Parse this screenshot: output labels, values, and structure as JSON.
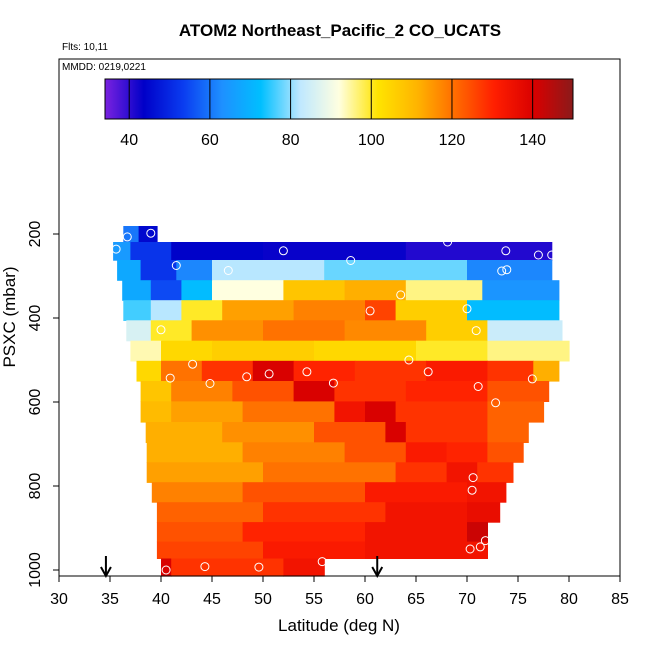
{
  "header": {
    "title": "ATOM2 Northeast_Pacific_2 CO_UCATS",
    "flts_label": "Flts: 10,11",
    "mmdd_label": "MMDD: 0219,0221"
  },
  "chart_data": {
    "type": "heatmap",
    "title": "ATOM2 Northeast_Pacific_2 CO_UCATS",
    "xlabel": "Latitude (deg N)",
    "ylabel": "PSXC (mbar)",
    "xlim": [
      30,
      85
    ],
    "ylim": [
      1000,
      0
    ],
    "y_reversed": true,
    "x_ticks": [
      30,
      35,
      40,
      45,
      50,
      55,
      60,
      65,
      70,
      75,
      80,
      85
    ],
    "y_ticks": [
      200,
      400,
      600,
      800,
      1000
    ],
    "colorbar": {
      "range": [
        34,
        150
      ],
      "ticks": [
        40,
        60,
        80,
        100,
        120,
        140
      ],
      "placement": "top-inside",
      "colors": [
        "#7a22e0",
        "#0000c8",
        "#0a3cf0",
        "#1e90ff",
        "#00bfff",
        "#bfe8ff",
        "#ffffe0",
        "#ffe400",
        "#ffb400",
        "#ff6a00",
        "#ff1e00",
        "#d80000",
        "#8b1a1a"
      ]
    },
    "grid": false,
    "bands": [
      {
        "p": 200,
        "segments": [
          {
            "x0": 36.3,
            "x1": 37.8,
            "v": 60
          },
          {
            "x0": 37.8,
            "x1": 39.6,
            "v": 45
          }
        ]
      },
      {
        "p": 238,
        "segments": [
          {
            "x0": 35.3,
            "x1": 37.0,
            "v": 65
          },
          {
            "x0": 37.0,
            "x1": 41.0,
            "v": 52
          },
          {
            "x0": 41.0,
            "x1": 50.0,
            "v": 44
          },
          {
            "x0": 50.0,
            "x1": 64.0,
            "v": 43
          },
          {
            "x0": 64.0,
            "x1": 78.3,
            "v": 41
          }
        ]
      },
      {
        "p": 286,
        "segments": [
          {
            "x0": 35.7,
            "x1": 38.0,
            "v": 68
          },
          {
            "x0": 38.0,
            "x1": 41.5,
            "v": 52
          },
          {
            "x0": 41.5,
            "x1": 45.0,
            "v": 62
          },
          {
            "x0": 45.0,
            "x1": 56.0,
            "v": 82
          },
          {
            "x0": 56.0,
            "x1": 70.0,
            "v": 78
          },
          {
            "x0": 70.0,
            "x1": 78.3,
            "v": 62
          }
        ]
      },
      {
        "p": 334,
        "segments": [
          {
            "x0": 36.2,
            "x1": 39.0,
            "v": 68
          },
          {
            "x0": 39.0,
            "x1": 42.0,
            "v": 55
          },
          {
            "x0": 42.0,
            "x1": 45.0,
            "v": 72
          },
          {
            "x0": 45.0,
            "x1": 52.0,
            "v": 92
          },
          {
            "x0": 52.0,
            "x1": 58.0,
            "v": 108
          },
          {
            "x0": 58.0,
            "x1": 64.0,
            "v": 112
          },
          {
            "x0": 64.0,
            "x1": 71.5,
            "v": 96
          },
          {
            "x0": 71.5,
            "x1": 79.0,
            "v": 64
          }
        ]
      },
      {
        "p": 381,
        "segments": [
          {
            "x0": 36.3,
            "x1": 39.0,
            "v": 76
          },
          {
            "x0": 39.0,
            "x1": 42.0,
            "v": 82
          },
          {
            "x0": 42.0,
            "x1": 46.0,
            "v": 100
          },
          {
            "x0": 46.0,
            "x1": 53.0,
            "v": 114
          },
          {
            "x0": 53.0,
            "x1": 60.0,
            "v": 118
          },
          {
            "x0": 60.0,
            "x1": 63.0,
            "v": 126
          },
          {
            "x0": 63.0,
            "x1": 70.0,
            "v": 106
          },
          {
            "x0": 70.0,
            "x1": 79.0,
            "v": 72
          }
        ]
      },
      {
        "p": 430,
        "segments": [
          {
            "x0": 36.6,
            "x1": 39.0,
            "v": 86
          },
          {
            "x0": 39.0,
            "x1": 43.0,
            "v": 100
          },
          {
            "x0": 43.0,
            "x1": 50.0,
            "v": 116
          },
          {
            "x0": 50.0,
            "x1": 58.0,
            "v": 120
          },
          {
            "x0": 58.0,
            "x1": 66.0,
            "v": 117
          },
          {
            "x0": 66.0,
            "x1": 72.0,
            "v": 106
          },
          {
            "x0": 72.0,
            "x1": 79.3,
            "v": 84
          }
        ]
      },
      {
        "p": 478,
        "segments": [
          {
            "x0": 37.0,
            "x1": 40.0,
            "v": 94
          },
          {
            "x0": 40.0,
            "x1": 45.0,
            "v": 104
          },
          {
            "x0": 45.0,
            "x1": 55.0,
            "v": 106
          },
          {
            "x0": 55.0,
            "x1": 65.0,
            "v": 104
          },
          {
            "x0": 65.0,
            "x1": 72.0,
            "v": 100
          },
          {
            "x0": 72.0,
            "x1": 80.0,
            "v": 96
          }
        ]
      },
      {
        "p": 526,
        "segments": [
          {
            "x0": 37.6,
            "x1": 40.0,
            "v": 104
          },
          {
            "x0": 40.0,
            "x1": 44.0,
            "v": 120
          },
          {
            "x0": 44.0,
            "x1": 49.0,
            "v": 128
          },
          {
            "x0": 49.0,
            "x1": 53.0,
            "v": 140
          },
          {
            "x0": 53.0,
            "x1": 59.0,
            "v": 130
          },
          {
            "x0": 59.0,
            "x1": 66.0,
            "v": 128
          },
          {
            "x0": 66.0,
            "x1": 72.0,
            "v": 132
          },
          {
            "x0": 72.0,
            "x1": 76.5,
            "v": 128
          },
          {
            "x0": 76.5,
            "x1": 79.0,
            "v": 112
          }
        ]
      },
      {
        "p": 574,
        "segments": [
          {
            "x0": 38.0,
            "x1": 41.0,
            "v": 108
          },
          {
            "x0": 41.0,
            "x1": 47.0,
            "v": 118
          },
          {
            "x0": 47.0,
            "x1": 53.0,
            "v": 124
          },
          {
            "x0": 53.0,
            "x1": 57.0,
            "v": 140
          },
          {
            "x0": 57.0,
            "x1": 64.0,
            "v": 128
          },
          {
            "x0": 64.0,
            "x1": 72.0,
            "v": 130
          },
          {
            "x0": 72.0,
            "x1": 78.0,
            "v": 124
          }
        ]
      },
      {
        "p": 623,
        "segments": [
          {
            "x0": 38.0,
            "x1": 41.0,
            "v": 110
          },
          {
            "x0": 41.0,
            "x1": 48.0,
            "v": 114
          },
          {
            "x0": 48.0,
            "x1": 57.0,
            "v": 120
          },
          {
            "x0": 57.0,
            "x1": 60.0,
            "v": 134
          },
          {
            "x0": 60.0,
            "x1": 63.0,
            "v": 140
          },
          {
            "x0": 63.0,
            "x1": 72.0,
            "v": 128
          },
          {
            "x0": 72.0,
            "x1": 77.5,
            "v": 122
          }
        ]
      },
      {
        "p": 672,
        "segments": [
          {
            "x0": 38.5,
            "x1": 46.0,
            "v": 112
          },
          {
            "x0": 46.0,
            "x1": 55.0,
            "v": 116
          },
          {
            "x0": 55.0,
            "x1": 62.0,
            "v": 124
          },
          {
            "x0": 62.0,
            "x1": 64.0,
            "v": 140
          },
          {
            "x0": 64.0,
            "x1": 72.0,
            "v": 128
          },
          {
            "x0": 72.0,
            "x1": 76.0,
            "v": 122
          }
        ]
      },
      {
        "p": 720,
        "segments": [
          {
            "x0": 38.6,
            "x1": 48.0,
            "v": 112
          },
          {
            "x0": 48.0,
            "x1": 58.0,
            "v": 118
          },
          {
            "x0": 58.0,
            "x1": 64.0,
            "v": 124
          },
          {
            "x0": 64.0,
            "x1": 68.0,
            "v": 132
          },
          {
            "x0": 68.0,
            "x1": 72.0,
            "v": 130
          },
          {
            "x0": 72.0,
            "x1": 75.5,
            "v": 124
          }
        ]
      },
      {
        "p": 767,
        "segments": [
          {
            "x0": 38.6,
            "x1": 50.0,
            "v": 114
          },
          {
            "x0": 50.0,
            "x1": 63.0,
            "v": 120
          },
          {
            "x0": 63.0,
            "x1": 68.0,
            "v": 128
          },
          {
            "x0": 68.0,
            "x1": 71.0,
            "v": 134
          },
          {
            "x0": 71.0,
            "x1": 74.5,
            "v": 128
          }
        ]
      },
      {
        "p": 815,
        "segments": [
          {
            "x0": 39.1,
            "x1": 48.0,
            "v": 118
          },
          {
            "x0": 48.0,
            "x1": 60.0,
            "v": 124
          },
          {
            "x0": 60.0,
            "x1": 70.0,
            "v": 132
          },
          {
            "x0": 70.0,
            "x1": 73.8,
            "v": 134
          }
        ]
      },
      {
        "p": 862,
        "segments": [
          {
            "x0": 39.6,
            "x1": 50.0,
            "v": 122
          },
          {
            "x0": 50.0,
            "x1": 62.0,
            "v": 128
          },
          {
            "x0": 62.0,
            "x1": 70.0,
            "v": 134
          },
          {
            "x0": 70.0,
            "x1": 73.2,
            "v": 136
          }
        ]
      },
      {
        "p": 910,
        "segments": [
          {
            "x0": 39.6,
            "x1": 48.0,
            "v": 124
          },
          {
            "x0": 48.0,
            "x1": 60.0,
            "v": 130
          },
          {
            "x0": 60.0,
            "x1": 70.0,
            "v": 134
          },
          {
            "x0": 70.0,
            "x1": 72.0,
            "v": 142
          }
        ]
      },
      {
        "p": 955,
        "segments": [
          {
            "x0": 39.6,
            "x1": 50.0,
            "v": 126
          },
          {
            "x0": 50.0,
            "x1": 60.0,
            "v": 132
          },
          {
            "x0": 60.0,
            "x1": 72.0,
            "v": 134
          }
        ]
      },
      {
        "p": 990,
        "segments": [
          {
            "x0": 40.0,
            "x1": 41.0,
            "v": 140
          },
          {
            "x0": 41.0,
            "x1": 52.0,
            "v": 128
          },
          {
            "x0": 52.0,
            "x1": 56.0,
            "v": 134
          }
        ]
      }
    ],
    "points": [
      {
        "x": 35.6,
        "y": 236
      },
      {
        "x": 36.7,
        "y": 207
      },
      {
        "x": 39.0,
        "y": 198
      },
      {
        "x": 41.5,
        "y": 275
      },
      {
        "x": 46.6,
        "y": 287
      },
      {
        "x": 52.0,
        "y": 240
      },
      {
        "x": 58.6,
        "y": 263
      },
      {
        "x": 63.5,
        "y": 345
      },
      {
        "x": 68.1,
        "y": 219
      },
      {
        "x": 73.8,
        "y": 240
      },
      {
        "x": 77.0,
        "y": 250
      },
      {
        "x": 78.3,
        "y": 250
      },
      {
        "x": 73.4,
        "y": 288
      },
      {
        "x": 73.9,
        "y": 285
      },
      {
        "x": 70.0,
        "y": 378
      },
      {
        "x": 70.9,
        "y": 430
      },
      {
        "x": 60.5,
        "y": 383
      },
      {
        "x": 40.0,
        "y": 428
      },
      {
        "x": 43.1,
        "y": 510
      },
      {
        "x": 40.9,
        "y": 543
      },
      {
        "x": 44.8,
        "y": 556
      },
      {
        "x": 48.4,
        "y": 540
      },
      {
        "x": 50.6,
        "y": 533
      },
      {
        "x": 54.3,
        "y": 528
      },
      {
        "x": 56.9,
        "y": 555
      },
      {
        "x": 64.3,
        "y": 500
      },
      {
        "x": 66.2,
        "y": 528
      },
      {
        "x": 71.1,
        "y": 563
      },
      {
        "x": 72.8,
        "y": 602
      },
      {
        "x": 76.4,
        "y": 545
      },
      {
        "x": 70.6,
        "y": 780
      },
      {
        "x": 70.5,
        "y": 810
      },
      {
        "x": 70.3,
        "y": 950
      },
      {
        "x": 71.3,
        "y": 945
      },
      {
        "x": 71.8,
        "y": 930
      },
      {
        "x": 40.5,
        "y": 1000
      },
      {
        "x": 44.3,
        "y": 992
      },
      {
        "x": 49.6,
        "y": 993
      },
      {
        "x": 55.8,
        "y": 980
      }
    ],
    "arrows_x": [
      34.6,
      61.2
    ]
  }
}
